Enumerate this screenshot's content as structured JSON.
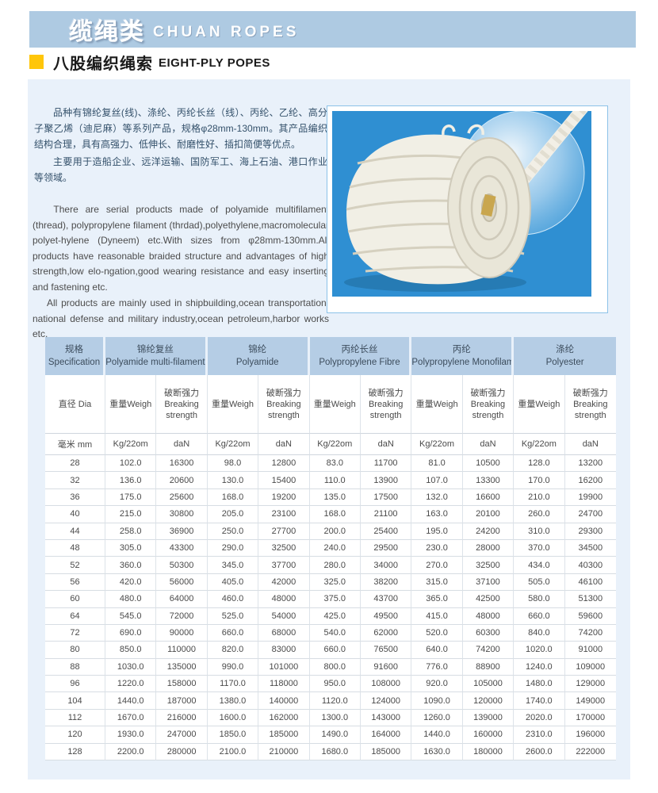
{
  "banner": {
    "title_zh": "缆绳类",
    "title_en": "CHUAN ROPES"
  },
  "section": {
    "title_zh": "八股编织绳索",
    "title_en": "EIGHT-PLY POPES"
  },
  "description": {
    "zh_p1": "品种有锦纶复丝(线)、涤纶、丙纶长丝（线）、丙纶、乙纶、高分子聚乙烯（迪尼麻）等系列产品，规格φ28mm-130mm。其产品编织结构合理，具有高强力、低伸长、耐磨性好、插扣简便等优点。",
    "zh_p2": "主要用于造船企业、远洋运输、国防军工、海上石油、港口作业等领域。",
    "en_p1": "There are serial products made of polyamide multifilament (thread), polypropylene filament (thrdad),polyethylene,macromolecular polyet-hylene (Dyneem) etc.With sizes from φ28mm-130mm.All products have reasonable braided structure and advantages of high strength,low elo-ngation,good wearing resistance and easy  inserting and fastening etc.",
    "en_p2": "All products are mainly used in shipbuilding,ocean transportation, national defense and military industry,ocean petroleum,harbor works etc."
  },
  "photo": {
    "subject": "white eight-ply braided rope coil on blue background with magnifier circle"
  },
  "colors": {
    "banner_blue": "#aecae2",
    "accent_yellow": "#ffc60a",
    "panel_blue": "#e9f1fa",
    "table_header_blue": "#b5cde5",
    "photo_blue": "#2f8fd2"
  },
  "table": {
    "groups": [
      {
        "zh": "规格",
        "en": "Specification",
        "span": 1
      },
      {
        "zh": "锦纶复丝",
        "en": "Polyamide multi-filament",
        "span": 2
      },
      {
        "zh": "锦纶",
        "en": "Polyamide",
        "span": 2
      },
      {
        "zh": "丙纶长丝",
        "en": "Polypropylene Fibre",
        "span": 2
      },
      {
        "zh": "丙纶",
        "en": "Polypropylene Monofilament",
        "span": 2
      },
      {
        "zh": "涤纶",
        "en": "Polyester",
        "span": 2
      }
    ],
    "sub": {
      "dia": "直径 Dia",
      "weight": "重量Weigh",
      "strength_lines": [
        "破断强力",
        "Breaking",
        "strength"
      ],
      "mm": "毫米 mm",
      "weight_unit": "Kg/22om",
      "strength_unit": "daN"
    },
    "rows": [
      [
        "28",
        "102.0",
        "16300",
        "98.0",
        "12800",
        "83.0",
        "11700",
        "81.0",
        "10500",
        "128.0",
        "13200"
      ],
      [
        "32",
        "136.0",
        "20600",
        "130.0",
        "15400",
        "110.0",
        "13900",
        "107.0",
        "13300",
        "170.0",
        "16200"
      ],
      [
        "36",
        "175.0",
        "25600",
        "168.0",
        "19200",
        "135.0",
        "17500",
        "132.0",
        "16600",
        "210.0",
        "19900"
      ],
      [
        "40",
        "215.0",
        "30800",
        "205.0",
        "23100",
        "168.0",
        "21100",
        "163.0",
        "20100",
        "260.0",
        "24700"
      ],
      [
        "44",
        "258.0",
        "36900",
        "250.0",
        "27700",
        "200.0",
        "25400",
        "195.0",
        "24200",
        "310.0",
        "29300"
      ],
      [
        "48",
        "305.0",
        "43300",
        "290.0",
        "32500",
        "240.0",
        "29500",
        "230.0",
        "28000",
        "370.0",
        "34500"
      ],
      [
        "52",
        "360.0",
        "50300",
        "345.0",
        "37700",
        "280.0",
        "34000",
        "270.0",
        "32500",
        "434.0",
        "40300"
      ],
      [
        "56",
        "420.0",
        "56000",
        "405.0",
        "42000",
        "325.0",
        "38200",
        "315.0",
        "37100",
        "505.0",
        "46100"
      ],
      [
        "60",
        "480.0",
        "64000",
        "460.0",
        "48000",
        "375.0",
        "43700",
        "365.0",
        "42500",
        "580.0",
        "51300"
      ],
      [
        "64",
        "545.0",
        "72000",
        "525.0",
        "54000",
        "425.0",
        "49500",
        "415.0",
        "48000",
        "660.0",
        "59600"
      ],
      [
        "72",
        "690.0",
        "90000",
        "660.0",
        "68000",
        "540.0",
        "62000",
        "520.0",
        "60300",
        "840.0",
        "74200"
      ],
      [
        "80",
        "850.0",
        "110000",
        "820.0",
        "83000",
        "660.0",
        "76500",
        "640.0",
        "74200",
        "1020.0",
        "91000"
      ],
      [
        "88",
        "1030.0",
        "135000",
        "990.0",
        "101000",
        "800.0",
        "91600",
        "776.0",
        "88900",
        "1240.0",
        "109000"
      ],
      [
        "96",
        "1220.0",
        "158000",
        "1170.0",
        "118000",
        "950.0",
        "108000",
        "920.0",
        "105000",
        "1480.0",
        "129000"
      ],
      [
        "104",
        "1440.0",
        "187000",
        "1380.0",
        "140000",
        "1120.0",
        "124000",
        "1090.0",
        "120000",
        "1740.0",
        "149000"
      ],
      [
        "112",
        "1670.0",
        "216000",
        "1600.0",
        "162000",
        "1300.0",
        "143000",
        "1260.0",
        "139000",
        "2020.0",
        "170000"
      ],
      [
        "120",
        "1930.0",
        "247000",
        "1850.0",
        "185000",
        "1490.0",
        "164000",
        "1440.0",
        "160000",
        "2310.0",
        "196000"
      ],
      [
        "128",
        "2200.0",
        "280000",
        "2100.0",
        "210000",
        "1680.0",
        "185000",
        "1630.0",
        "180000",
        "2600.0",
        "222000"
      ]
    ]
  }
}
